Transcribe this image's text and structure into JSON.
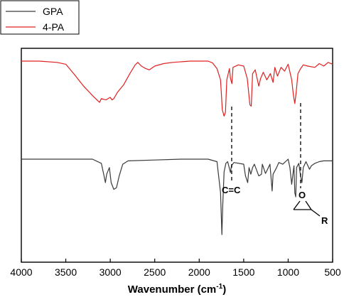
{
  "chart_data": {
    "type": "line",
    "title": "",
    "xlabel_main": "Wavenumber (cm",
    "xlabel_sup": "-1",
    "xlabel_close": ")",
    "ylabel": "",
    "xlim": [
      4000,
      500
    ],
    "x_reversed": true,
    "x_ticks": [
      "4000",
      "3500",
      "3000",
      "2500",
      "2000",
      "1500",
      "1000",
      "500"
    ],
    "y_ticks_shown": false,
    "grid": false,
    "legend_position": "top-left",
    "series": [
      {
        "name": "GPA",
        "color": "#3a3a3a",
        "points": [
          [
            4000,
            0.0
          ],
          [
            3600,
            0.0
          ],
          [
            3200,
            0.0
          ],
          [
            3100,
            -0.05
          ],
          [
            3070,
            -0.2
          ],
          [
            3055,
            -0.28
          ],
          [
            3040,
            -0.18
          ],
          [
            3010,
            -0.1
          ],
          [
            2990,
            -0.28
          ],
          [
            2960,
            -0.36
          ],
          [
            2930,
            -0.34
          ],
          [
            2900,
            -0.2
          ],
          [
            2860,
            -0.06
          ],
          [
            2800,
            -0.02
          ],
          [
            2500,
            -0.01
          ],
          [
            2200,
            0.0
          ],
          [
            1900,
            0.0
          ],
          [
            1800,
            -0.03
          ],
          [
            1760,
            -0.4
          ],
          [
            1745,
            -0.9
          ],
          [
            1735,
            -0.55
          ],
          [
            1720,
            -0.15
          ],
          [
            1700,
            -0.05
          ],
          [
            1680,
            -0.03
          ],
          [
            1648,
            -0.16
          ],
          [
            1638,
            -0.08
          ],
          [
            1610,
            -0.04
          ],
          [
            1500,
            -0.06
          ],
          [
            1480,
            -0.2
          ],
          [
            1455,
            -0.28
          ],
          [
            1440,
            -0.1
          ],
          [
            1420,
            -0.18
          ],
          [
            1400,
            -0.1
          ],
          [
            1380,
            -0.06
          ],
          [
            1330,
            -0.2
          ],
          [
            1300,
            -0.18
          ],
          [
            1290,
            -0.06
          ],
          [
            1255,
            -0.17
          ],
          [
            1240,
            -0.14
          ],
          [
            1205,
            -0.06
          ],
          [
            1180,
            -0.38
          ],
          [
            1170,
            -0.18
          ],
          [
            1130,
            -0.1
          ],
          [
            1105,
            -0.04
          ],
          [
            1060,
            -0.06
          ],
          [
            1000,
            0.0
          ],
          [
            980,
            -0.1
          ],
          [
            960,
            -0.3
          ],
          [
            935,
            -0.08
          ],
          [
            925,
            -0.4
          ],
          [
            915,
            -0.45
          ],
          [
            905,
            -0.1
          ],
          [
            880,
            -0.05
          ],
          [
            860,
            -0.2
          ],
          [
            845,
            -0.28
          ],
          [
            830,
            -0.1
          ],
          [
            800,
            -0.03
          ],
          [
            760,
            -0.12
          ],
          [
            740,
            -0.08
          ],
          [
            700,
            -0.05
          ],
          [
            650,
            -0.03
          ],
          [
            600,
            -0.02
          ],
          [
            500,
            -0.02
          ]
        ]
      },
      {
        "name": "4-PA",
        "color": "#e02020",
        "points": [
          [
            4000,
            0.0
          ],
          [
            3800,
            0.0
          ],
          [
            3600,
            -0.02
          ],
          [
            3500,
            -0.05
          ],
          [
            3400,
            -0.22
          ],
          [
            3300,
            -0.4
          ],
          [
            3200,
            -0.55
          ],
          [
            3150,
            -0.62
          ],
          [
            3120,
            -0.66
          ],
          [
            3100,
            -0.6
          ],
          [
            3050,
            -0.62
          ],
          [
            3000,
            -0.58
          ],
          [
            2980,
            -0.62
          ],
          [
            2960,
            -0.6
          ],
          [
            2920,
            -0.5
          ],
          [
            2850,
            -0.38
          ],
          [
            2780,
            -0.2
          ],
          [
            2720,
            -0.06
          ],
          [
            2690,
            -0.02
          ],
          [
            2650,
            -0.08
          ],
          [
            2600,
            -0.12
          ],
          [
            2560,
            -0.14
          ],
          [
            2500,
            -0.08
          ],
          [
            2400,
            -0.04
          ],
          [
            2300,
            -0.02
          ],
          [
            2100,
            0.0
          ],
          [
            1900,
            0.0
          ],
          [
            1850,
            -0.03
          ],
          [
            1800,
            -0.12
          ],
          [
            1760,
            -0.3
          ],
          [
            1740,
            -0.78
          ],
          [
            1720,
            -0.88
          ],
          [
            1705,
            -0.82
          ],
          [
            1690,
            -0.3
          ],
          [
            1660,
            -0.12
          ],
          [
            1648,
            -0.28
          ],
          [
            1632,
            -0.36
          ],
          [
            1620,
            -0.1
          ],
          [
            1560,
            -0.06
          ],
          [
            1500,
            -0.08
          ],
          [
            1460,
            -0.28
          ],
          [
            1430,
            -0.7
          ],
          [
            1415,
            -0.72
          ],
          [
            1400,
            -0.2
          ],
          [
            1370,
            -0.14
          ],
          [
            1330,
            -0.4
          ],
          [
            1310,
            -0.28
          ],
          [
            1280,
            -0.18
          ],
          [
            1240,
            -0.3
          ],
          [
            1200,
            -0.2
          ],
          [
            1170,
            -0.34
          ],
          [
            1150,
            -0.1
          ],
          [
            1120,
            -0.24
          ],
          [
            1080,
            -0.1
          ],
          [
            1040,
            -0.16
          ],
          [
            1000,
            -0.05
          ],
          [
            960,
            -0.3
          ],
          [
            940,
            -0.55
          ],
          [
            925,
            -0.68
          ],
          [
            910,
            -0.5
          ],
          [
            890,
            -0.2
          ],
          [
            860,
            -0.12
          ],
          [
            830,
            -0.06
          ],
          [
            780,
            -0.08
          ],
          [
            700,
            -0.1
          ],
          [
            650,
            -0.04
          ],
          [
            600,
            -0.08
          ],
          [
            550,
            -0.02
          ],
          [
            500,
            -0.05
          ]
        ]
      }
    ],
    "annotations": {
      "cc_label": "C=C",
      "cc_wavenumber": 1635,
      "epoxide_o": "O",
      "epoxide_r": "R",
      "epoxide_wavenumber": 860
    }
  }
}
